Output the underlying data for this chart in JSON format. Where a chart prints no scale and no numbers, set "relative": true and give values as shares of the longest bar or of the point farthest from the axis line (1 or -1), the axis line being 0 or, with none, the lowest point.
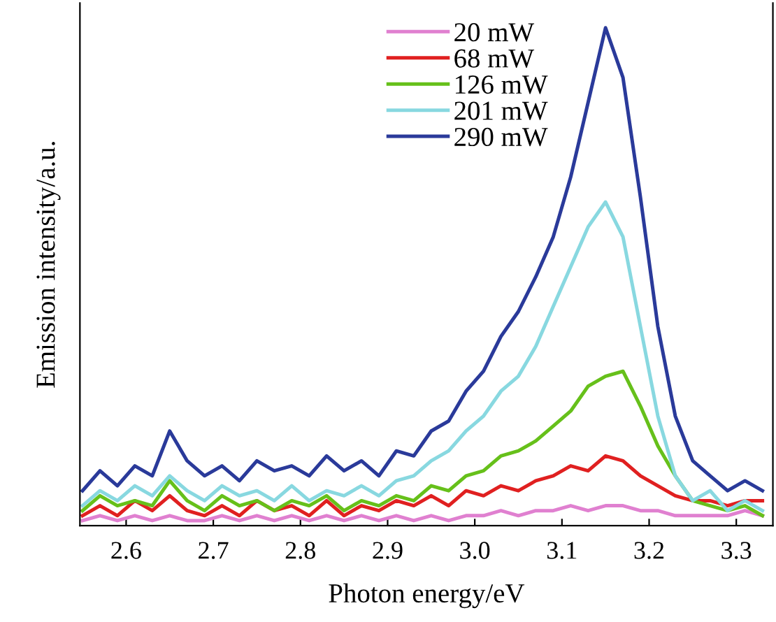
{
  "chart_data": {
    "type": "line",
    "xlabel": "Photon energy/eV",
    "ylabel": "Emission intensity/a.u.",
    "relative": true,
    "xlim": [
      2.547,
      3.342
    ],
    "xticks": [
      2.6,
      2.7,
      2.8,
      2.9,
      {
        "value": 3.0,
        "label": "3.0"
      },
      3.1,
      3.2,
      3.3
    ],
    "legend": "top",
    "grid": false,
    "marker": "none",
    "line_style": "solid",
    "x": [
      2.55,
      2.57,
      2.59,
      2.61,
      2.63,
      2.65,
      2.67,
      2.69,
      2.71,
      2.73,
      2.75,
      2.77,
      2.79,
      2.81,
      2.83,
      2.85,
      2.87,
      2.89,
      2.91,
      2.93,
      2.95,
      2.97,
      2.99,
      3.01,
      3.03,
      3.05,
      3.07,
      3.09,
      3.11,
      3.13,
      3.15,
      3.17,
      3.19,
      3.21,
      3.23,
      3.25,
      3.27,
      3.29,
      3.31,
      3.33
    ],
    "series": [
      {
        "name": "20 mW",
        "color": "#e080d0",
        "values": [
          0.01,
          0.02,
          0.01,
          0.02,
          0.01,
          0.02,
          0.01,
          0.01,
          0.02,
          0.01,
          0.02,
          0.01,
          0.02,
          0.01,
          0.02,
          0.01,
          0.02,
          0.01,
          0.02,
          0.01,
          0.02,
          0.01,
          0.02,
          0.02,
          0.03,
          0.02,
          0.03,
          0.03,
          0.04,
          0.03,
          0.04,
          0.04,
          0.03,
          0.03,
          0.02,
          0.02,
          0.02,
          0.02,
          0.03,
          0.02
        ]
      },
      {
        "name": "68 mW",
        "color": "#e02020",
        "values": [
          0.02,
          0.04,
          0.02,
          0.05,
          0.03,
          0.06,
          0.03,
          0.02,
          0.04,
          0.02,
          0.05,
          0.03,
          0.04,
          0.02,
          0.05,
          0.02,
          0.04,
          0.03,
          0.05,
          0.04,
          0.06,
          0.04,
          0.07,
          0.06,
          0.08,
          0.07,
          0.09,
          0.1,
          0.12,
          0.11,
          0.14,
          0.13,
          0.1,
          0.08,
          0.06,
          0.05,
          0.05,
          0.04,
          0.05,
          0.05
        ]
      },
      {
        "name": "126 mW",
        "color": "#66c01a",
        "values": [
          0.03,
          0.06,
          0.04,
          0.05,
          0.04,
          0.09,
          0.05,
          0.03,
          0.06,
          0.04,
          0.05,
          0.03,
          0.05,
          0.04,
          0.06,
          0.03,
          0.05,
          0.04,
          0.06,
          0.05,
          0.08,
          0.07,
          0.1,
          0.11,
          0.14,
          0.15,
          0.17,
          0.2,
          0.23,
          0.28,
          0.3,
          0.31,
          0.24,
          0.16,
          0.1,
          0.05,
          0.04,
          0.03,
          0.04,
          0.02
        ]
      },
      {
        "name": "201 mW",
        "color": "#88d8e0",
        "values": [
          0.04,
          0.07,
          0.05,
          0.08,
          0.06,
          0.1,
          0.07,
          0.05,
          0.08,
          0.06,
          0.07,
          0.05,
          0.08,
          0.05,
          0.07,
          0.06,
          0.08,
          0.06,
          0.09,
          0.1,
          0.13,
          0.15,
          0.19,
          0.22,
          0.27,
          0.3,
          0.36,
          0.44,
          0.52,
          0.6,
          0.65,
          0.58,
          0.4,
          0.22,
          0.1,
          0.05,
          0.07,
          0.03,
          0.05,
          0.03
        ]
      },
      {
        "name": "290 mW",
        "color": "#2a3a9a",
        "values": [
          0.07,
          0.11,
          0.08,
          0.12,
          0.1,
          0.19,
          0.13,
          0.1,
          0.12,
          0.09,
          0.13,
          0.11,
          0.12,
          0.1,
          0.14,
          0.11,
          0.13,
          0.1,
          0.15,
          0.14,
          0.19,
          0.21,
          0.27,
          0.31,
          0.38,
          0.43,
          0.5,
          0.58,
          0.7,
          0.85,
          1.0,
          0.9,
          0.66,
          0.4,
          0.22,
          0.13,
          0.1,
          0.07,
          0.09,
          0.07
        ]
      }
    ]
  }
}
